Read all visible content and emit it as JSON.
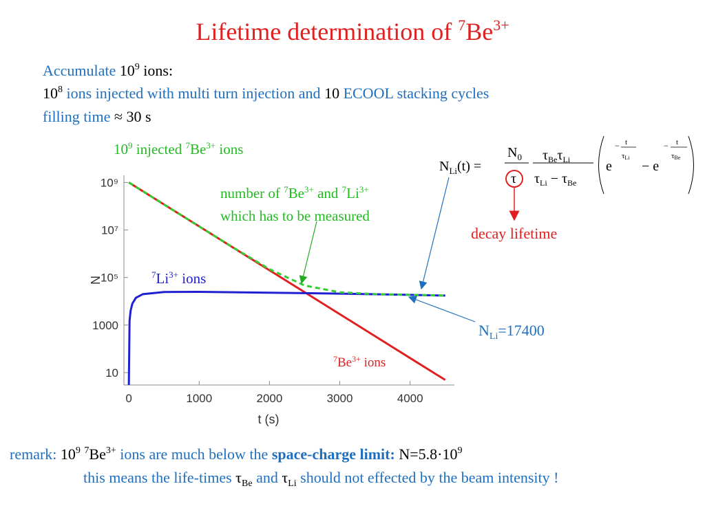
{
  "title": [
    "Lifetime determination  of ",
    "7",
    "Be",
    "3+"
  ],
  "info": [
    [
      "Accumulate",
      "10",
      "9",
      " ions:"
    ],
    [
      "10",
      "8",
      " ions injected with  multi turn injection  and",
      " 10 ",
      "ECOOL stacking cycles"
    ],
    [
      "filling time",
      " ≈ 30 s"
    ]
  ],
  "formula": {
    "lhs": [
      "N",
      "Li",
      "(t) ="
    ],
    "n0": [
      "N",
      "0"
    ],
    "tau": "τ",
    "num": [
      "τ",
      "Be",
      "τ",
      "Li"
    ],
    "den": [
      "τ",
      "Li",
      " − τ",
      "Be"
    ],
    "e1": [
      "e",
      "−",
      "t",
      "τ",
      "Li"
    ],
    "e2": [
      "− e",
      "−",
      "t",
      "τ",
      "Be"
    ]
  },
  "decay_label": "decay lifetime",
  "remark": [
    [
      "remark:",
      "10",
      "9",
      "7",
      "Be",
      "3+",
      " ions are much below the ",
      "space-charge limit:",
      " N=5.8·10",
      "9"
    ],
    [
      "this means the  life-times ",
      "τ",
      "Be",
      " and ",
      "τ",
      "Li",
      " should not effected by the beam intensity !"
    ]
  ],
  "chart_data": {
    "type": "line",
    "xlabel": "t (s)",
    "ylabel": "N",
    "xlim": [
      -70,
      4630
    ],
    "ylim": [
      3,
      2000000000
    ],
    "yscale": "log",
    "xticks": [
      0,
      1000,
      2000,
      3000,
      4000
    ],
    "yticks": [
      10,
      1000,
      {
        "value": 100000,
        "label": "10⁵"
      },
      {
        "value": 10000000,
        "label": "10⁷"
      },
      {
        "value": 1000000000,
        "label": "10⁹"
      }
    ],
    "x": [
      0,
      10,
      25,
      50,
      100,
      200,
      500,
      1000,
      1500,
      2000,
      2500,
      3000,
      3500,
      4000,
      4500
    ],
    "series": [
      {
        "name": "Be",
        "color": "#e02020",
        "values": [
          1000000000,
          958000000,
          899000000,
          808000000,
          653000000,
          427000000,
          119000000,
          14200000,
          1690000,
          202000,
          24100,
          2870,
          342,
          40.8,
          4.9
        ]
      },
      {
        "name": "Li",
        "color": "#2020d0",
        "values": [
          3,
          1500,
          4000,
          8000,
          14000,
          20000,
          24500,
          25000,
          24000,
          23000,
          22000,
          21000,
          19800,
          18600,
          17400
        ]
      },
      {
        "name": "sum",
        "color": "#33cc33",
        "dashed": true,
        "values": [
          1000000000,
          958000000,
          899000000,
          808000000,
          653000000,
          427000000,
          119000000,
          14200000,
          1710000,
          225000,
          46100,
          23900,
          20100,
          18600,
          17400
        ]
      }
    ],
    "annotations": {
      "injected": [
        "10",
        "9",
        " injected ",
        "7",
        "Be",
        "3+",
        " ions"
      ],
      "measured": [
        "number of ",
        "7",
        "Be",
        "3+",
        " and ",
        "7",
        "Li",
        "3+",
        "which has to be measured"
      ],
      "li_label": [
        "7",
        "Li",
        "3+",
        " ions"
      ],
      "be_label": [
        "7",
        "Be",
        "3+",
        " ions"
      ],
      "nli": [
        "N",
        "Li",
        "=17400"
      ]
    }
  }
}
